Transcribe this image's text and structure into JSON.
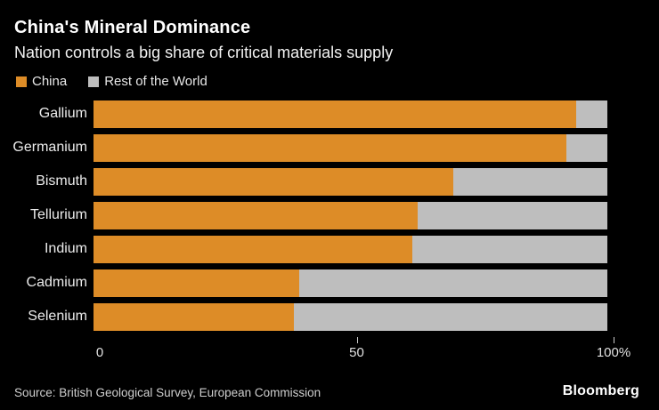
{
  "header": {
    "title": "China's Mineral Dominance",
    "subtitle": "Nation controls a big share of critical materials supply"
  },
  "chart_data": {
    "type": "bar",
    "orientation": "horizontal",
    "stacked": true,
    "title": "China's Mineral Dominance",
    "subtitle": "Nation controls a big share of critical materials supply",
    "categories": [
      "Gallium",
      "Germanium",
      "Bismuth",
      "Tellurium",
      "Indium",
      "Cadmium",
      "Selenium"
    ],
    "series": [
      {
        "name": "China",
        "color": "#DD8C27",
        "values": [
          94,
          92,
          70,
          63,
          62,
          40,
          39
        ]
      },
      {
        "name": "Rest of the World",
        "color": "#BEBEBE",
        "values": [
          6,
          8,
          30,
          37,
          38,
          60,
          61
        ]
      }
    ],
    "unit": "%",
    "xlabel": "",
    "ylabel": "",
    "xlim": [
      0,
      100
    ],
    "xticks": [
      {
        "value": 0,
        "label": "0"
      },
      {
        "value": 50,
        "label": "50"
      },
      {
        "value": 100,
        "label": "100%"
      }
    ],
    "legend_position": "top-left",
    "grid": false
  },
  "footer": {
    "source": "Source: British Geological Survey, European Commission",
    "brand": "Bloomberg"
  },
  "colors": {
    "background": "#000000",
    "china": "#DD8C27",
    "rest_of_world": "#BEBEBE",
    "title_text": "#FFFFFF",
    "axis_text": "#E0E0E0"
  }
}
